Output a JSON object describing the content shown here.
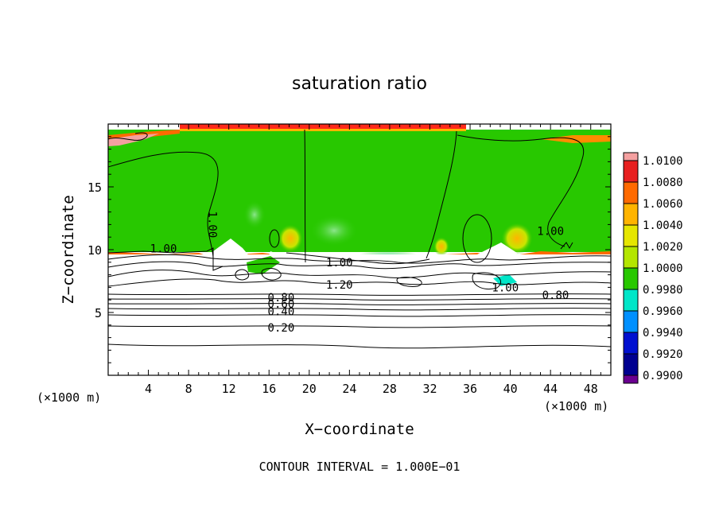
{
  "chart_data": {
    "type": "heatmap",
    "title": "saturation ratio",
    "xlabel": "X−coordinate",
    "ylabel": "Z−coordinate",
    "x_unit_left": "(×1000 m)",
    "x_unit_right": "(×1000 m)",
    "xlim": [
      0,
      50
    ],
    "ylim": [
      0,
      20
    ],
    "xticks": [
      4,
      8,
      12,
      16,
      20,
      24,
      28,
      32,
      36,
      40,
      44,
      48
    ],
    "xtick_labels": [
      "4",
      "8",
      "12",
      "16",
      "20",
      "24",
      "28",
      "32",
      "36",
      "40",
      "44",
      "48"
    ],
    "yticks": [
      5,
      10,
      15
    ],
    "ytick_labels": [
      "5",
      "10",
      "15"
    ],
    "footer": "CONTOUR INTERVAL = 1.000E−01",
    "colorbar": {
      "levels": [
        "1.0100",
        "1.0080",
        "1.0060",
        "1.0040",
        "1.0020",
        "1.0000",
        "0.9980",
        "0.9960",
        "0.9940",
        "0.9920",
        "0.9900"
      ],
      "colors": [
        "#f4a0a0",
        "#e82020",
        "#ff6a00",
        "#ffb400",
        "#e6e600",
        "#b4e600",
        "#28c800",
        "#00e6c8",
        "#0090ff",
        "#0010d0",
        "#000090",
        "#6a0090"
      ]
    },
    "contour_labels": [
      {
        "text": "1.00",
        "x": 10.4,
        "z": 12.0,
        "rotate": 90
      },
      {
        "text": "1.00",
        "x": 5.5,
        "z": 10.1
      },
      {
        "text": "1.00",
        "x": 23.0,
        "z": 9.0
      },
      {
        "text": "1.20",
        "x": 23.0,
        "z": 7.2
      },
      {
        "text": "0.80",
        "x": 17.2,
        "z": 6.2
      },
      {
        "text": "0.60",
        "x": 17.2,
        "z": 5.7
      },
      {
        "text": "0.40",
        "x": 17.2,
        "z": 5.1
      },
      {
        "text": "0.20",
        "x": 17.2,
        "z": 3.8
      },
      {
        "text": "1.00",
        "x": 44.0,
        "z": 11.5
      },
      {
        "text": "1.00",
        "x": 39.5,
        "z": 7.0
      },
      {
        "text": "0.80",
        "x": 44.5,
        "z": 6.4
      }
    ]
  }
}
